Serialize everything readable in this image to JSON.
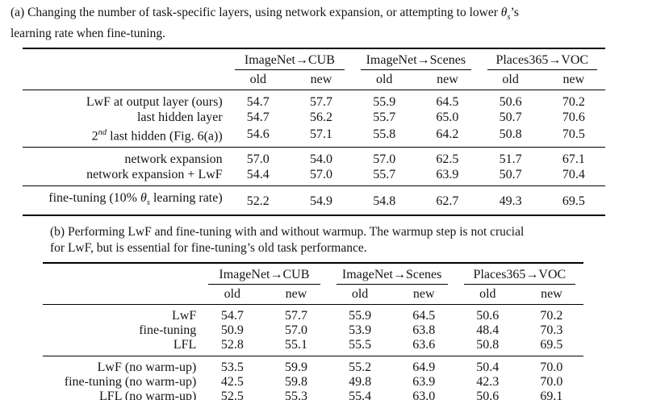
{
  "caption_a": {
    "line1": {
      "seg1": "(a) Changing the number of task-specific layers, using network expansion, or attempting to lower ",
      "theta": "θ",
      "theta_sub": "s",
      "seg2": "’s"
    },
    "line2": "learning rate when fine-tuning."
  },
  "table_a": {
    "col_groups": [
      {
        "label": "ImageNet→CUB"
      },
      {
        "label": "ImageNet→Scenes"
      },
      {
        "label": "Places365→VOC"
      }
    ],
    "sub_headers": [
      "old",
      "new"
    ],
    "groups": [
      {
        "rows": [
          {
            "label": "LwF at output layer (ours)",
            "values": [
              "54.7",
              "57.7",
              "55.9",
              "64.5",
              "50.6",
              "70.2"
            ]
          },
          {
            "label": "last hidden layer",
            "values": [
              "54.7",
              "56.2",
              "55.7",
              "65.0",
              "50.7",
              "70.6"
            ]
          },
          {
            "label_base": "2",
            "label_sup": "nd",
            "label_rest": " last hidden (Fig. 6(a))",
            "values": [
              "54.6",
              "57.1",
              "55.8",
              "64.2",
              "50.8",
              "70.5"
            ]
          }
        ]
      },
      {
        "rows": [
          {
            "label": "network expansion",
            "values": [
              "57.0",
              "54.0",
              "57.0",
              "62.5",
              "51.7",
              "67.1"
            ]
          },
          {
            "label": "network expansion + LwF",
            "values": [
              "54.4",
              "57.0",
              "55.7",
              "63.9",
              "50.7",
              "70.4"
            ]
          }
        ]
      },
      {
        "rows": [
          {
            "label_pre": "fine-tuning (10% ",
            "theta": "θ",
            "theta_sub": "s",
            "label_post": " learning rate)",
            "values": [
              "52.2",
              "54.9",
              "54.8",
              "62.7",
              "49.3",
              "69.5"
            ]
          }
        ]
      }
    ]
  },
  "caption_b": {
    "line1": "(b) Performing LwF and fine-tuning with and without warmup. The warmup step is not crucial",
    "line2": "for LwF, but is essential for fine-tuning’s old task performance."
  },
  "table_b": {
    "col_groups": [
      {
        "label": "ImageNet→CUB"
      },
      {
        "label": "ImageNet→Scenes"
      },
      {
        "label": "Places365→VOC"
      }
    ],
    "sub_headers": [
      "old",
      "new"
    ],
    "groups": [
      {
        "rows": [
          {
            "label": "LwF",
            "values": [
              "54.7",
              "57.7",
              "55.9",
              "64.5",
              "50.6",
              "70.2"
            ]
          },
          {
            "label": "fine-tuning",
            "values": [
              "50.9",
              "57.0",
              "53.9",
              "63.8",
              "48.4",
              "70.3"
            ]
          },
          {
            "label": "LFL",
            "values": [
              "52.8",
              "55.1",
              "55.5",
              "63.6",
              "50.8",
              "69.5"
            ]
          }
        ]
      },
      {
        "rows": [
          {
            "label": "LwF (no warm-up)",
            "values": [
              "53.5",
              "59.9",
              "55.2",
              "64.9",
              "50.4",
              "70.0"
            ]
          },
          {
            "label": "fine-tuning (no warm-up)",
            "values": [
              "42.5",
              "59.8",
              "49.8",
              "63.9",
              "42.3",
              "70.0"
            ]
          },
          {
            "label": "LFL (no warm-up)",
            "values": [
              "52.5",
              "55.3",
              "55.4",
              "63.0",
              "50.6",
              "69.1"
            ]
          }
        ]
      }
    ]
  }
}
